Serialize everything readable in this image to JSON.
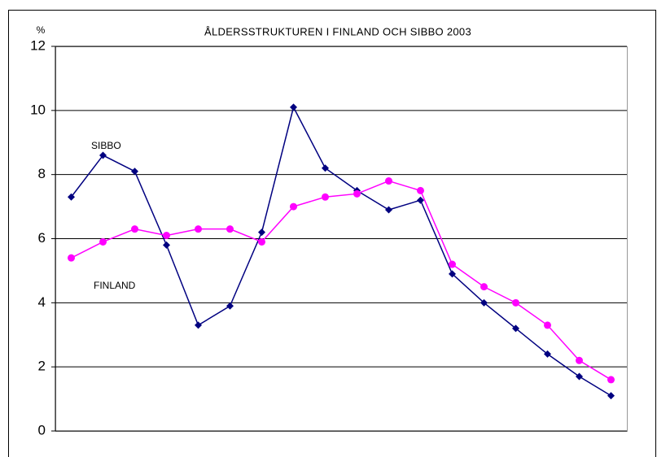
{
  "chart_data": {
    "type": "line",
    "title": "ÅLDERSSTRUKTUREN I FINLAND OCH SIBBO 2003",
    "y_label": "%",
    "categories": [
      null,
      null,
      null,
      null,
      null,
      null,
      null,
      null,
      null,
      null,
      null,
      null,
      null,
      null,
      null,
      null,
      null,
      null
    ],
    "series": [
      {
        "name": "SIBBO",
        "color": "#000080",
        "marker": "diamond",
        "values": [
          7.3,
          8.6,
          8.1,
          5.8,
          3.3,
          3.9,
          6.2,
          10.1,
          8.2,
          7.5,
          6.9,
          7.2,
          4.9,
          4.0,
          3.2,
          2.4,
          1.7,
          1.1
        ]
      },
      {
        "name": "FINLAND",
        "color": "#ff00ff",
        "marker": "circle",
        "values": [
          5.4,
          5.9,
          6.3,
          6.1,
          6.3,
          6.3,
          5.9,
          7.0,
          7.3,
          7.4,
          7.8,
          7.5,
          5.2,
          4.5,
          4.0,
          3.3,
          2.2,
          1.6
        ]
      }
    ],
    "ylim": [
      0,
      12
    ],
    "yticks": [
      0,
      2,
      4,
      6,
      8,
      10,
      12
    ],
    "grid": true
  }
}
